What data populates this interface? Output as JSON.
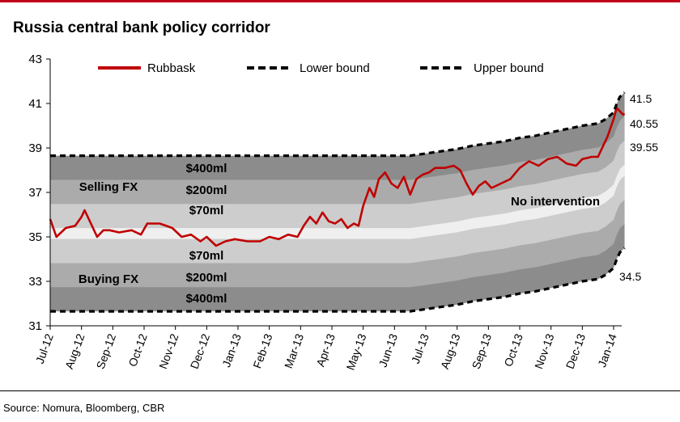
{
  "title": "Russia central bank policy corridor",
  "source": "Source: Nomura, Bloomberg, CBR",
  "colors": {
    "accent": "#c0001a",
    "rubbask": "#c00000",
    "band_outer": "#8c8c8c",
    "band_mid": "#ababab",
    "band_inner": "#cdcdcd",
    "band_center": "#efefef"
  },
  "chart_data": {
    "type": "line",
    "title": "Russia central bank policy corridor",
    "ylim": [
      31,
      43
    ],
    "y_ticks": [
      "31",
      "33",
      "35",
      "37",
      "39",
      "41",
      "43"
    ],
    "categories": [
      "Jul-12",
      "Aug-12",
      "Sep-12",
      "Oct-12",
      "Nov-12",
      "Dec-12",
      "Jan-13",
      "Feb-13",
      "Mar-13",
      "Apr-13",
      "May-13",
      "Jun-13",
      "Jul-13",
      "Aug-13",
      "Sep-13",
      "Oct-13",
      "Nov-13",
      "Dec-13",
      "Jan-14"
    ],
    "grid": false,
    "legend_position": "top",
    "legend": [
      "Rubbask",
      "Lower bound",
      "Upper bound"
    ],
    "series": [
      {
        "name": "Rubbask",
        "x": [
          0,
          0.2,
          0.5,
          0.8,
          1.0,
          1.1,
          1.3,
          1.5,
          1.7,
          1.9,
          2.2,
          2.6,
          2.9,
          3.1,
          3.5,
          3.9,
          4.2,
          4.5,
          4.8,
          5.0,
          5.3,
          5.6,
          5.9,
          6.3,
          6.7,
          7.0,
          7.3,
          7.6,
          7.9,
          8.1,
          8.3,
          8.5,
          8.7,
          8.9,
          9.1,
          9.3,
          9.5,
          9.7,
          9.85,
          10.0,
          10.2,
          10.35,
          10.5,
          10.7,
          10.9,
          11.1,
          11.3,
          11.5,
          11.7,
          11.9,
          12.1,
          12.3,
          12.6,
          12.9,
          13.1,
          13.3,
          13.5,
          13.7,
          13.9,
          14.1,
          14.4,
          14.7,
          15.0,
          15.3,
          15.6,
          15.9,
          16.2,
          16.5,
          16.8,
          17.0,
          17.3,
          17.5,
          17.6,
          17.8,
          18.0,
          18.1,
          18.3,
          18.35
        ],
        "values": [
          35.8,
          35.0,
          35.4,
          35.5,
          35.9,
          36.2,
          35.6,
          35.0,
          35.3,
          35.3,
          35.2,
          35.3,
          35.1,
          35.6,
          35.6,
          35.4,
          35.0,
          35.1,
          34.8,
          35.0,
          34.6,
          34.8,
          34.9,
          34.8,
          34.8,
          35.0,
          34.9,
          35.1,
          35.0,
          35.5,
          35.9,
          35.6,
          36.1,
          35.7,
          35.6,
          35.8,
          35.4,
          35.6,
          35.5,
          36.4,
          37.2,
          36.8,
          37.6,
          37.9,
          37.4,
          37.2,
          37.7,
          36.9,
          37.6,
          37.8,
          37.9,
          38.1,
          38.1,
          38.2,
          38.0,
          37.4,
          36.9,
          37.3,
          37.5,
          37.2,
          37.4,
          37.6,
          38.1,
          38.4,
          38.2,
          38.5,
          38.6,
          38.3,
          38.2,
          38.5,
          38.6,
          38.6,
          38.9,
          39.5,
          40.3,
          40.8,
          40.5,
          40.55
        ]
      },
      {
        "name": "Lower bound",
        "x": [
          0,
          11.5,
          12.0,
          12.5,
          13.0,
          13.5,
          14.0,
          14.5,
          15.0,
          15.5,
          16.0,
          16.5,
          17.0,
          17.5,
          17.75,
          18.0,
          18.1,
          18.2,
          18.35
        ],
        "values": [
          31.65,
          31.65,
          31.75,
          31.85,
          31.95,
          32.1,
          32.2,
          32.3,
          32.45,
          32.55,
          32.7,
          32.85,
          33.0,
          33.1,
          33.3,
          33.6,
          34.0,
          34.3,
          34.5
        ]
      },
      {
        "name": "Upper bound",
        "x": [
          0,
          11.5,
          12.0,
          12.5,
          13.0,
          13.5,
          14.0,
          14.5,
          15.0,
          15.5,
          16.0,
          16.5,
          17.0,
          17.5,
          17.75,
          18.0,
          18.1,
          18.2,
          18.35
        ],
        "values": [
          38.65,
          38.65,
          38.75,
          38.85,
          38.95,
          39.1,
          39.2,
          39.3,
          39.45,
          39.55,
          39.7,
          39.85,
          40.0,
          40.1,
          40.3,
          40.6,
          41.0,
          41.3,
          41.5
        ]
      }
    ],
    "band_labels": {
      "upper": [
        "$400ml",
        "$200ml",
        "$70ml"
      ],
      "lower": [
        "$70ml",
        "$200ml",
        "$400ml"
      ],
      "selling": "Selling FX",
      "buying": "Buying FX",
      "middle": "No intervention"
    },
    "end_labels": [
      "41.5",
      "40.55",
      "39.55",
      "34.5"
    ]
  }
}
